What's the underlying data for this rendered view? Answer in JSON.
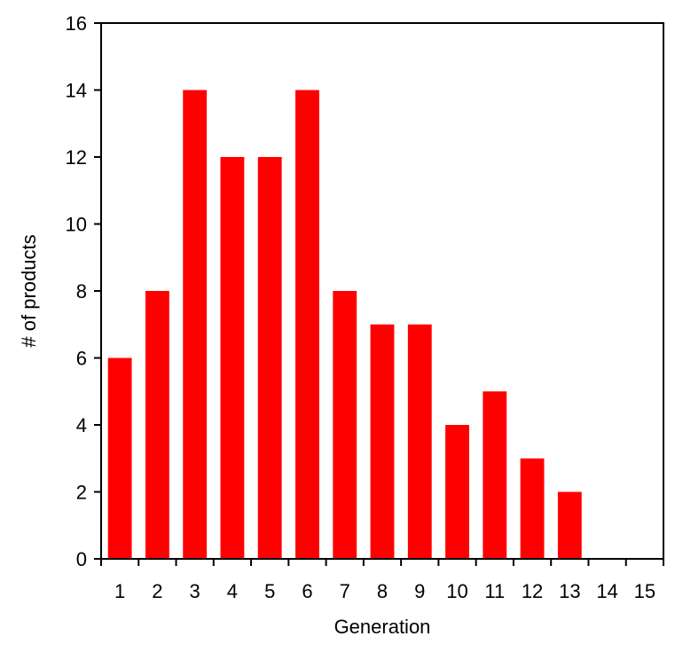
{
  "chart_data": {
    "type": "bar",
    "title": "",
    "xlabel": "Generation",
    "ylabel": "# of products",
    "categories": [
      "1",
      "2",
      "3",
      "4",
      "5",
      "6",
      "7",
      "8",
      "9",
      "10",
      "11",
      "12",
      "13",
      "14",
      "15"
    ],
    "values": [
      6,
      8,
      14,
      12,
      12,
      14,
      8,
      7,
      7,
      4,
      5,
      3,
      2,
      0,
      0
    ],
    "ylim": [
      0,
      16
    ],
    "yticks": [
      "0",
      "2",
      "4",
      "6",
      "8",
      "10",
      "12",
      "14",
      "16"
    ],
    "bar_color": "#ff0000",
    "grid": false,
    "legend": "none"
  }
}
